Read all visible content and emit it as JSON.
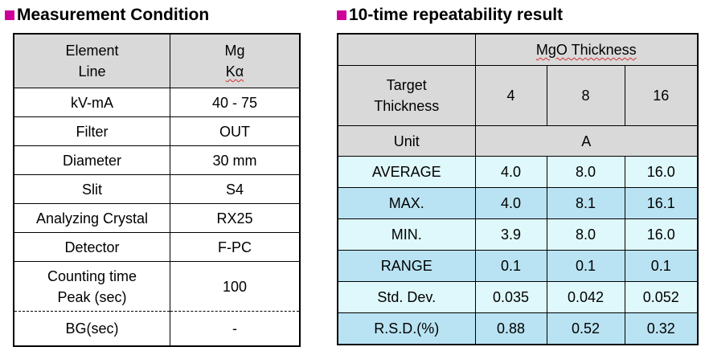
{
  "left": {
    "heading": "Measurement Condition",
    "header": {
      "col1_line1": "Element",
      "col1_line2": "Line",
      "col2_line1": "Mg",
      "col2_line2": "Kα"
    },
    "rows": [
      {
        "label": "kV-mA",
        "value": "40 - 75"
      },
      {
        "label": "Filter",
        "value": "OUT"
      },
      {
        "label": "Diameter",
        "value": "30 mm"
      },
      {
        "label": "Slit",
        "value": "S4"
      },
      {
        "label": "Analyzing Crystal",
        "value": "RX25"
      },
      {
        "label": "Detector",
        "value": "F-PC"
      }
    ],
    "counting": {
      "label_line1": "Counting time",
      "label_line2": "Peak (sec)",
      "value": "100"
    },
    "bg": {
      "label": "BG(sec)",
      "value": "-"
    }
  },
  "right": {
    "heading": "10-time repeatability result",
    "thickness_header": "MgO Thickness",
    "target_label_line1": "Target",
    "target_label_line2": "Thickness",
    "targets": [
      "4",
      "8",
      "16"
    ],
    "unit_label": "Unit",
    "unit_value": "A",
    "rows": [
      {
        "label": "AVERAGE",
        "values": [
          "4.0",
          "8.0",
          "16.0"
        ]
      },
      {
        "label": "MAX.",
        "values": [
          "4.0",
          "8.1",
          "16.1"
        ]
      },
      {
        "label": "MIN.",
        "values": [
          "3.9",
          "8.0",
          "16.0"
        ]
      },
      {
        "label": "RANGE",
        "values": [
          "0.1",
          "0.1",
          "0.1"
        ]
      },
      {
        "label": "Std. Dev.",
        "values": [
          "0.035",
          "0.042",
          "0.052"
        ]
      },
      {
        "label": "R.S.D.(%)",
        "values": [
          "0.88",
          "0.52",
          "0.32"
        ]
      }
    ]
  },
  "colors": {
    "accent": "#cc0099",
    "header_gray": "#d9d9d9",
    "row_light": "#dff8fb",
    "row_mid": "#b9e3f2"
  }
}
